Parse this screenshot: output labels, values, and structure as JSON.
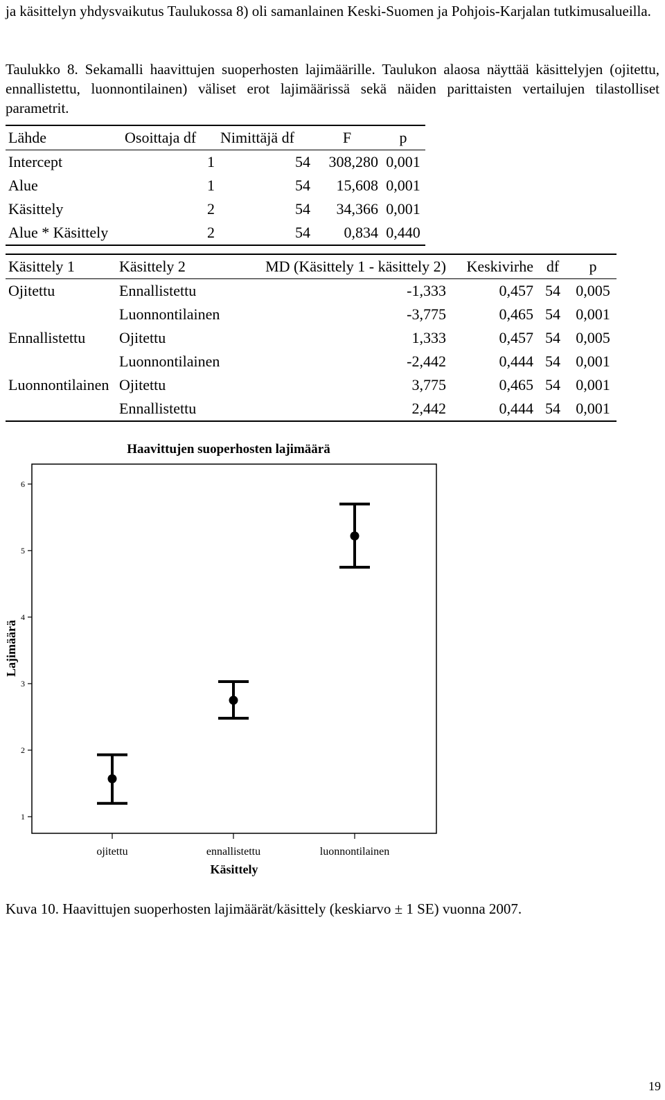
{
  "intro_text": "ja käsittelyn yhdysvaikutus Taulukossa 8) oli samanlainen Keski-Suomen ja Pohjois-Karjalan tutkimusalueilla.",
  "table_caption": "Taulukko 8. Sekamalli haavittujen suoperhosten lajimäärille. Taulukon alaosa näyttää käsittelyjen (ojitettu, ennallistettu, luonnontilainen) väliset erot lajimäärissä sekä näiden parittaisten vertailujen tilastolliset parametrit.",
  "table1": {
    "headers": [
      "Lähde",
      "Osoittaja df",
      "Nimittäjä df",
      "F",
      "p"
    ],
    "rows": [
      [
        "Intercept",
        "1",
        "54",
        "308,280",
        "0,001"
      ],
      [
        "Alue",
        "1",
        "54",
        "15,608",
        "0,001"
      ],
      [
        "Käsittely",
        "2",
        "54",
        "34,366",
        "0,001"
      ],
      [
        "Alue * Käsittely",
        "2",
        "54",
        "0,834",
        "0,440"
      ]
    ]
  },
  "table2": {
    "headers": [
      "Käsittely 1",
      "Käsittely 2",
      "MD (Käsittely 1 - käsittely 2)",
      "Keskivirhe",
      "df",
      "p"
    ],
    "rows": [
      [
        "Ojitettu",
        "Ennallistettu",
        "-1,333",
        "0,457",
        "54",
        "0,005"
      ],
      [
        "",
        "Luonnontilainen",
        "-3,775",
        "0,465",
        "54",
        "0,001"
      ],
      [
        "Ennallistettu",
        "Ojitettu",
        "1,333",
        "0,457",
        "54",
        "0,005"
      ],
      [
        "",
        "Luonnontilainen",
        "-2,442",
        "0,444",
        "54",
        "0,001"
      ],
      [
        "Luonnontilainen",
        "Ojitettu",
        "3,775",
        "0,465",
        "54",
        "0,001"
      ],
      [
        "",
        "Ennallistettu",
        "2,442",
        "0,444",
        "54",
        "0,001"
      ]
    ]
  },
  "chart_data": {
    "type": "errorbar",
    "title": "Haavittujen suoperhosten lajimäärä",
    "xlabel": "Käsittely",
    "ylabel": "Lajimäärä",
    "categories": [
      "ojitettu",
      "ennallistettu",
      "luonnontilainen"
    ],
    "means": [
      1.57,
      2.75,
      5.22
    ],
    "lower": [
      1.2,
      2.48,
      4.75
    ],
    "upper": [
      1.93,
      3.03,
      5.7
    ],
    "y_ticks": [
      1,
      2,
      3,
      4,
      5,
      6
    ],
    "ylim": [
      0.75,
      6.3
    ],
    "grid": false,
    "legend": "none"
  },
  "figure_caption": "Kuva 10. Haavittujen suoperhosten lajimäärät/käsittely (keskiarvo ± 1 SE) vuonna 2007.",
  "page_number": "19"
}
